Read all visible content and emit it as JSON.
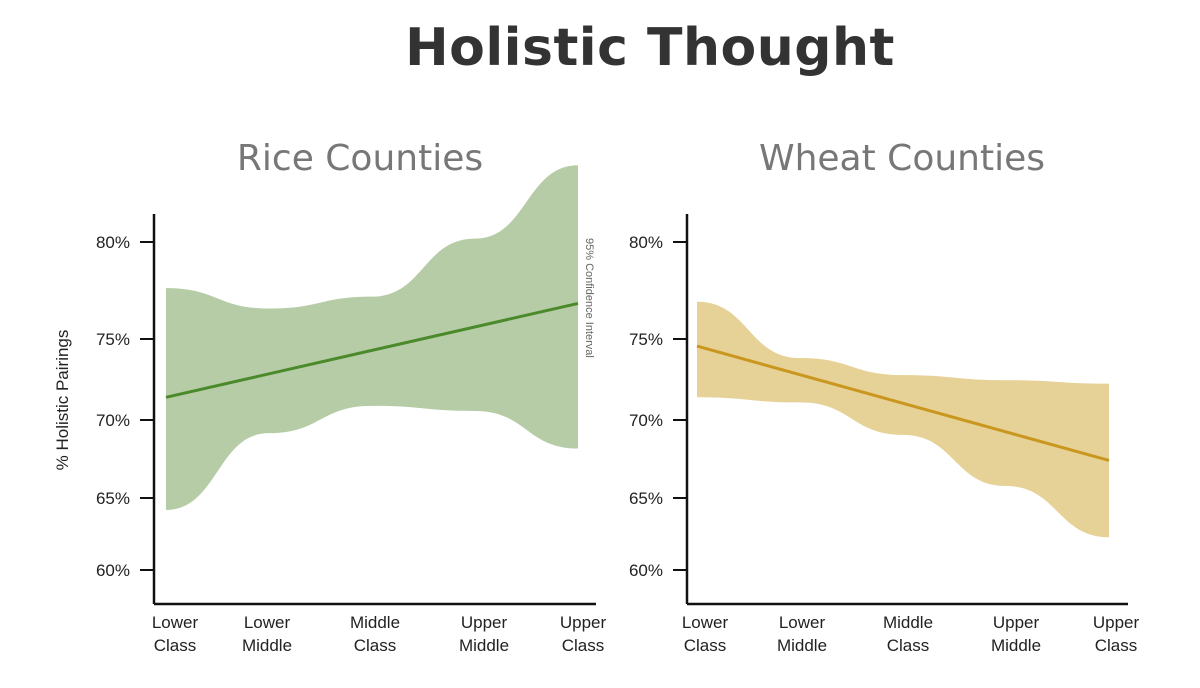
{
  "title": "Holistic Thought",
  "chart_data": [
    {
      "type": "line",
      "title": "Rice Counties",
      "ylabel": "% Holistic Pairings",
      "categories": [
        "Lower\nClass",
        "Lower\nMiddle",
        "Middle\nClass",
        "Upper\nMiddle",
        "Upper\nClass"
      ],
      "y_ticks": [
        "60%",
        "65%",
        "70%",
        "75%",
        "80%"
      ],
      "y_tick_values": [
        60,
        65,
        70,
        75,
        80
      ],
      "series": [
        {
          "values": [
            70.9,
            72.3,
            73.7,
            75.0,
            76.4
          ]
        }
      ],
      "ci_upper": [
        77.3,
        76.1,
        76.8,
        80.2,
        84.5
      ],
      "ci_lower": [
        64.3,
        68.8,
        70.4,
        70.1,
        67.9
      ],
      "annotation": "95% Confidence Interval",
      "colors": {
        "line": "#4a8a2a",
        "band": "#b6cca6"
      }
    },
    {
      "type": "line",
      "title": "Wheat Counties",
      "ylabel": "",
      "categories": [
        "Lower\nClass",
        "Lower\nMiddle",
        "Middle\nClass",
        "Upper\nMiddle",
        "Upper\nClass"
      ],
      "y_ticks": [
        "60%",
        "65%",
        "70%",
        "75%",
        "80%"
      ],
      "y_tick_values": [
        60,
        65,
        70,
        75,
        80
      ],
      "series": [
        {
          "values": [
            73.9,
            72.2,
            70.6,
            68.9,
            67.2
          ]
        }
      ],
      "ci_upper": [
        76.5,
        73.2,
        72.2,
        71.9,
        71.7
      ],
      "ci_lower": [
        70.9,
        70.6,
        68.7,
        65.7,
        62.7
      ],
      "colors": {
        "line": "#c9961e",
        "band": "#e6d196"
      }
    }
  ]
}
